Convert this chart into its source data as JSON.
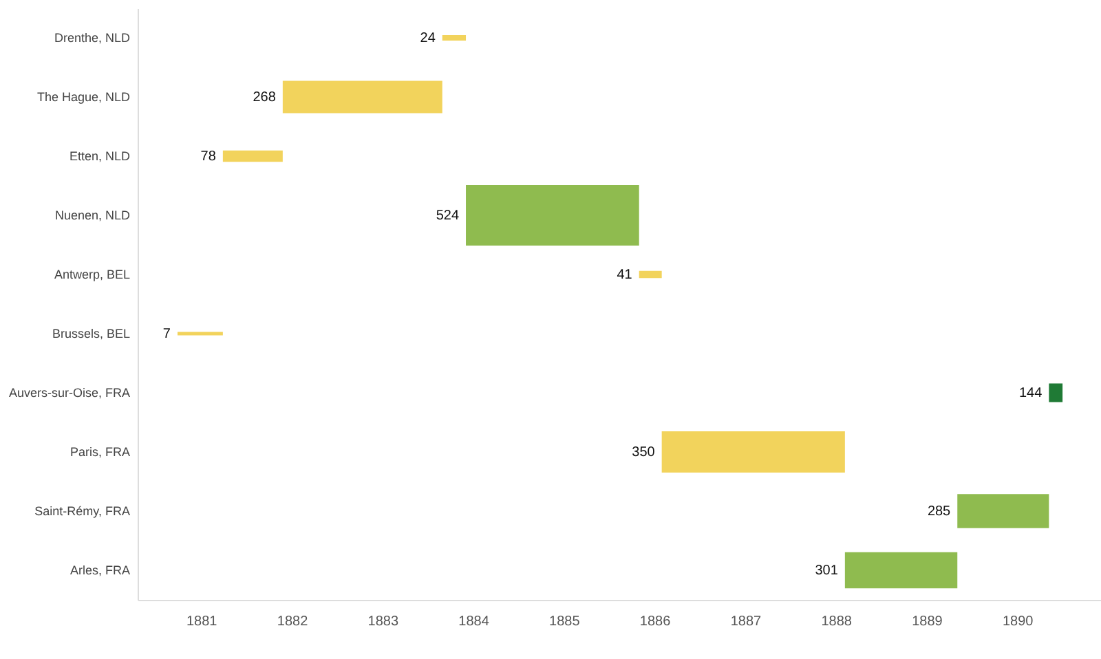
{
  "chart_data": {
    "type": "bar",
    "orientation": "horizontal",
    "categories": [
      "Drenthe, NLD",
      "The Hague, NLD",
      "Etten, NLD",
      "Nuenen, NLD",
      "Antwerp, BEL",
      "Brussels, BEL",
      "Auvers-sur-Oise, FRA",
      "Paris, FRA",
      "Saint-Rémy, FRA",
      "Arles, FRA"
    ],
    "base": [
      1883.66,
      1881.9,
      1881.24,
      1883.92,
      1885.83,
      1880.74,
      1890.35,
      1886.08,
      1889.34,
      1888.1
    ],
    "values": [
      0.26,
      1.76,
      0.66,
      1.91,
      0.25,
      0.5,
      0.15,
      2.02,
      1.01,
      1.24
    ],
    "annotations": [
      {
        "text": "24",
        "x": 1883.66,
        "y": "Drenthe, NLD"
      },
      {
        "text": "268",
        "x": 1881.9,
        "y": "The Hague, NLD"
      },
      {
        "text": "78",
        "x": 1881.24,
        "y": "Etten, NLD"
      },
      {
        "text": "524",
        "x": 1883.92,
        "y": "Nuenen, NLD"
      },
      {
        "text": "41",
        "x": 1885.83,
        "y": "Antwerp, BEL"
      },
      {
        "text": "7",
        "x": 1880.74,
        "y": "Brussels, BEL"
      },
      {
        "text": "144",
        "x": 1890.35,
        "y": "Auvers-sur-Oise, FRA"
      },
      {
        "text": "350",
        "x": 1886.08,
        "y": "Paris, FRA"
      },
      {
        "text": "285",
        "x": 1889.34,
        "y": "Saint-Rémy, FRA"
      },
      {
        "text": "301",
        "x": 1888.1,
        "y": "Arles, FRA"
      }
    ],
    "colors": [
      "#f2d35c",
      "#f2d35c",
      "#f2d35c",
      "#8fbb4f",
      "#f2d35c",
      "#f2d35c",
      "#1f7a35",
      "#f2d35c",
      "#8fbb4f",
      "#8fbb4f"
    ],
    "xlim": [
      1880.3,
      1891
    ],
    "xticks": [
      1881,
      1882,
      1883,
      1884,
      1885,
      1886,
      1887,
      1888,
      1889,
      1890
    ],
    "grid": false
  }
}
